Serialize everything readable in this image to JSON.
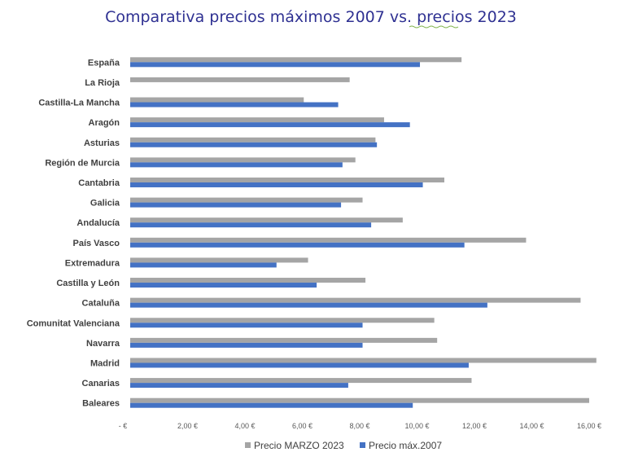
{
  "chart_data": {
    "type": "bar",
    "orientation": "horizontal",
    "title": "Comparativa precios máximos 2007 vs. precios 2023",
    "xlabel": "",
    "ylabel": "",
    "xlim": [
      0,
      16
    ],
    "x_ticks": [
      0,
      2,
      4,
      6,
      8,
      10,
      12,
      14,
      16
    ],
    "x_tick_labels": [
      "-  €",
      "2,00 €",
      "4,00 €",
      "6,00 €",
      "8,00 €",
      "10,00 €",
      "12,00 €",
      "14,00 €",
      "16,00 €"
    ],
    "grid": false,
    "legend_position": "bottom",
    "categories": [
      "España",
      "La Rioja",
      "Castilla-La Mancha",
      "Aragón",
      "Asturias",
      "Región de Murcia",
      "Cantabria",
      "Galicia",
      "Andalucía",
      "País Vasco",
      "Extremadura",
      "Castilla y León",
      "Cataluña",
      "Comunitat Valenciana",
      "Navarra",
      "Madrid",
      "Canarias",
      "Baleares"
    ],
    "series": [
      {
        "name": "Precio MARZO 2023",
        "color": "#a5a5a5",
        "values": [
          11.55,
          7.65,
          6.05,
          8.85,
          8.55,
          7.85,
          10.95,
          8.1,
          9.5,
          13.8,
          6.2,
          8.2,
          15.7,
          10.6,
          10.7,
          16.25,
          11.9,
          16.0
        ]
      },
      {
        "name": "Precio máx.2007",
        "color": "#4472c4",
        "values": [
          10.1,
          null,
          7.25,
          9.75,
          8.6,
          7.4,
          10.2,
          7.35,
          8.4,
          11.65,
          5.1,
          6.5,
          12.45,
          8.1,
          8.1,
          11.8,
          7.6,
          9.85
        ]
      }
    ]
  }
}
